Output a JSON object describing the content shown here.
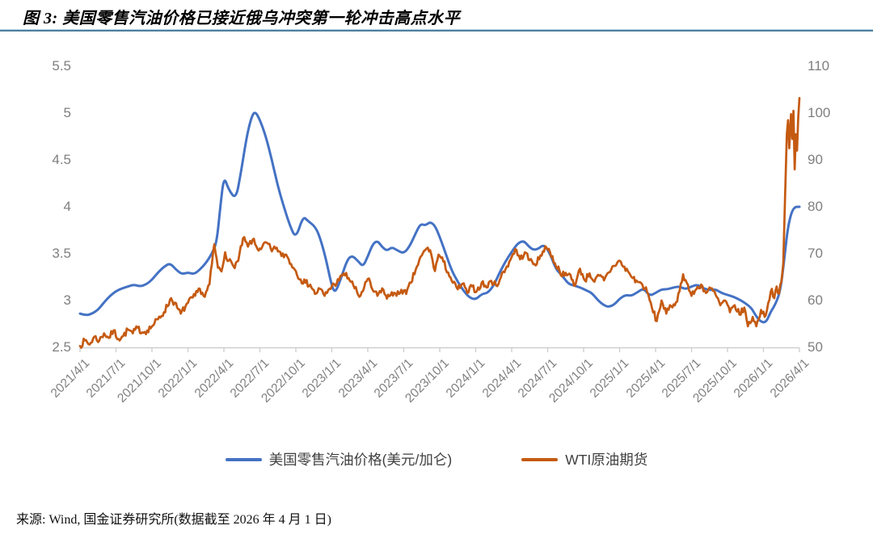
{
  "title": "图 3: 美国零售汽油价格已接近俄乌冲突第一轮冲击高点水平",
  "source_note": "来源: Wind, 国金证券研究所(数据截至 2026 年 4 月 1 日)",
  "colors": {
    "gasoline_line": "#4472C4",
    "wti_line": "#C55A11",
    "axis_text": "#7f7f7f",
    "axis_line": "#c9c9c9",
    "legend_text": "#3f3f3f",
    "divider": "#4e7f9e"
  },
  "legend": [
    {
      "label": "美国零售汽油价格(美元/加仑)",
      "color": "#4472C4"
    },
    {
      "label": "WTI原油期货",
      "color": "#C55A11"
    }
  ],
  "chart_data": {
    "type": "line",
    "title": "美国零售汽油价格 vs WTI原油期货",
    "grid": false,
    "legend_position": "bottom",
    "x_axis": {
      "unit": "months since 2021/4/1",
      "range": [
        0,
        60
      ],
      "tick_interval_months": 3,
      "tick_labels": [
        "2021/4/1",
        "2021/7/1",
        "2021/10/1",
        "2022/1/1",
        "2022/4/1",
        "2022/7/1",
        "2022/10/1",
        "2023/1/1",
        "2023/4/1",
        "2023/7/1",
        "2023/10/1",
        "2024/1/1",
        "2024/4/1",
        "2024/7/1",
        "2024/10/1",
        "2025/1/1",
        "2025/4/1",
        "2025/7/1",
        "2025/10/1",
        "2026/1/1",
        "2026/4/1"
      ]
    },
    "y_left": {
      "min": 2.5,
      "max": 5.5,
      "ticks": [
        "2.5",
        "3",
        "3.5",
        "4",
        "4.5",
        "5",
        "5.5"
      ]
    },
    "y_right": {
      "min": 50,
      "max": 110,
      "ticks": [
        "50",
        "60",
        "70",
        "80",
        "90",
        "100",
        "110"
      ]
    },
    "render": {
      "seed": 7
    },
    "series": [
      {
        "name": "美国零售汽油价格(美元/加仑)",
        "axis": "left",
        "color": "#4472C4",
        "stroke_width": 3,
        "smooth": true,
        "jitter": 0,
        "points": [
          [
            0,
            2.86
          ],
          [
            0.5,
            2.84
          ],
          [
            1,
            2.86
          ],
          [
            1.5,
            2.9
          ],
          [
            2,
            2.98
          ],
          [
            2.5,
            3.05
          ],
          [
            3,
            3.1
          ],
          [
            3.5,
            3.13
          ],
          [
            4,
            3.15
          ],
          [
            4.5,
            3.17
          ],
          [
            5,
            3.15
          ],
          [
            5.5,
            3.17
          ],
          [
            6,
            3.22
          ],
          [
            6.5,
            3.3
          ],
          [
            7,
            3.36
          ],
          [
            7.5,
            3.4
          ],
          [
            8,
            3.33
          ],
          [
            8.5,
            3.28
          ],
          [
            9,
            3.3
          ],
          [
            9.5,
            3.28
          ],
          [
            10,
            3.33
          ],
          [
            10.5,
            3.4
          ],
          [
            11,
            3.5
          ],
          [
            11.4,
            3.62
          ],
          [
            11.7,
            4.0
          ],
          [
            12,
            4.33
          ],
          [
            12.4,
            4.18
          ],
          [
            13,
            4.08
          ],
          [
            13.4,
            4.35
          ],
          [
            13.9,
            4.75
          ],
          [
            14.3,
            4.96
          ],
          [
            14.6,
            5.02
          ],
          [
            15,
            4.93
          ],
          [
            15.5,
            4.75
          ],
          [
            16,
            4.5
          ],
          [
            16.5,
            4.22
          ],
          [
            17,
            4.0
          ],
          [
            17.5,
            3.8
          ],
          [
            18,
            3.66
          ],
          [
            18.6,
            3.9
          ],
          [
            19,
            3.85
          ],
          [
            19.6,
            3.79
          ],
          [
            20,
            3.68
          ],
          [
            20.5,
            3.45
          ],
          [
            21,
            3.15
          ],
          [
            21.3,
            3.08
          ],
          [
            21.8,
            3.25
          ],
          [
            22.3,
            3.44
          ],
          [
            22.7,
            3.48
          ],
          [
            23.2,
            3.42
          ],
          [
            23.6,
            3.36
          ],
          [
            24,
            3.47
          ],
          [
            24.4,
            3.6
          ],
          [
            24.8,
            3.64
          ],
          [
            25.2,
            3.57
          ],
          [
            25.6,
            3.53
          ],
          [
            26,
            3.57
          ],
          [
            26.4,
            3.54
          ],
          [
            27,
            3.5
          ],
          [
            27.5,
            3.58
          ],
          [
            28,
            3.72
          ],
          [
            28.4,
            3.82
          ],
          [
            28.8,
            3.8
          ],
          [
            29.2,
            3.84
          ],
          [
            29.6,
            3.8
          ],
          [
            30,
            3.68
          ],
          [
            30.5,
            3.5
          ],
          [
            31,
            3.32
          ],
          [
            31.5,
            3.2
          ],
          [
            32,
            3.1
          ],
          [
            32.5,
            3.03
          ],
          [
            33,
            3.01
          ],
          [
            33.5,
            3.07
          ],
          [
            34,
            3.08
          ],
          [
            34.5,
            3.16
          ],
          [
            35,
            3.3
          ],
          [
            35.5,
            3.42
          ],
          [
            36,
            3.52
          ],
          [
            36.5,
            3.61
          ],
          [
            37,
            3.64
          ],
          [
            37.4,
            3.58
          ],
          [
            37.8,
            3.54
          ],
          [
            38.2,
            3.55
          ],
          [
            38.7,
            3.6
          ],
          [
            39.2,
            3.5
          ],
          [
            39.7,
            3.33
          ],
          [
            40.2,
            3.27
          ],
          [
            40.7,
            3.18
          ],
          [
            41.2,
            3.16
          ],
          [
            41.7,
            3.14
          ],
          [
            42.2,
            3.11
          ],
          [
            42.7,
            3.08
          ],
          [
            43.2,
            3.0
          ],
          [
            43.7,
            2.95
          ],
          [
            44.1,
            2.93
          ],
          [
            44.6,
            2.96
          ],
          [
            45,
            3.02
          ],
          [
            45.5,
            3.06
          ],
          [
            46,
            3.05
          ],
          [
            46.5,
            3.09
          ],
          [
            47,
            3.13
          ],
          [
            47.5,
            3.05
          ],
          [
            48,
            3.08
          ],
          [
            48.5,
            3.12
          ],
          [
            49,
            3.12
          ],
          [
            49.5,
            3.14
          ],
          [
            50,
            3.15
          ],
          [
            50.5,
            3.12
          ],
          [
            51,
            3.15
          ],
          [
            51.5,
            3.17
          ],
          [
            52,
            3.13
          ],
          [
            52.5,
            3.11
          ],
          [
            53,
            3.12
          ],
          [
            53.5,
            3.08
          ],
          [
            54,
            3.06
          ],
          [
            54.5,
            3.04
          ],
          [
            55,
            3.01
          ],
          [
            55.5,
            2.97
          ],
          [
            56,
            2.92
          ],
          [
            56.3,
            2.85
          ],
          [
            56.7,
            2.78
          ],
          [
            57.2,
            2.76
          ],
          [
            57.6,
            2.88
          ],
          [
            58,
            2.96
          ],
          [
            58.4,
            3.1
          ],
          [
            58.7,
            3.4
          ],
          [
            59,
            3.75
          ],
          [
            59.3,
            3.93
          ],
          [
            59.6,
            4.0
          ],
          [
            60,
            4.0
          ]
        ]
      },
      {
        "name": "WTI原油期货",
        "axis": "right",
        "color": "#C55A11",
        "stroke_width": 2.7,
        "smooth": false,
        "jitter": 0.7,
        "points": [
          [
            0,
            50.3
          ],
          [
            0.4,
            51.5
          ],
          [
            0.8,
            50.6
          ],
          [
            1.2,
            52.3
          ],
          [
            1.6,
            51.4
          ],
          [
            2,
            53.0
          ],
          [
            2.4,
            52.0
          ],
          [
            2.8,
            53.6
          ],
          [
            3.2,
            51.8
          ],
          [
            3.6,
            52.4
          ],
          [
            4,
            53.8
          ],
          [
            4.4,
            53.0
          ],
          [
            4.8,
            54.2
          ],
          [
            5.2,
            53.2
          ],
          [
            5.6,
            53.6
          ],
          [
            6,
            54.5
          ],
          [
            6.5,
            56.0
          ],
          [
            7,
            57.5
          ],
          [
            7.6,
            60.5
          ],
          [
            8.1,
            58.5
          ],
          [
            8.4,
            57.2
          ],
          [
            9,
            59.5
          ],
          [
            9.6,
            61.0
          ],
          [
            10,
            62.5
          ],
          [
            10.4,
            60.8
          ],
          [
            10.8,
            63.5
          ],
          [
            11.2,
            72.0
          ],
          [
            11.5,
            67.0
          ],
          [
            11.8,
            66.2
          ],
          [
            12.1,
            70.3
          ],
          [
            12.4,
            68.5
          ],
          [
            12.8,
            67.3
          ],
          [
            13.2,
            68.5
          ],
          [
            13.6,
            73.3
          ],
          [
            14,
            71.5
          ],
          [
            14.4,
            73.0
          ],
          [
            14.8,
            71.0
          ],
          [
            15.2,
            71.5
          ],
          [
            15.6,
            72.3
          ],
          [
            16,
            70.5
          ],
          [
            16.4,
            71.3
          ],
          [
            16.8,
            69.5
          ],
          [
            17.2,
            69.8
          ],
          [
            17.6,
            67.8
          ],
          [
            18,
            66.3
          ],
          [
            18.4,
            64.5
          ],
          [
            18.8,
            63.8
          ],
          [
            19.2,
            63.4
          ],
          [
            19.6,
            61.4
          ],
          [
            20,
            62.5
          ],
          [
            20.4,
            61.0
          ],
          [
            20.8,
            62.5
          ],
          [
            21.2,
            63.5
          ],
          [
            21.6,
            64.3
          ],
          [
            22,
            65.8
          ],
          [
            22.4,
            64.8
          ],
          [
            22.8,
            63.2
          ],
          [
            23.3,
            60.8
          ],
          [
            23.7,
            62.8
          ],
          [
            24,
            64.6
          ],
          [
            24.4,
            62.3
          ],
          [
            24.8,
            61.0
          ],
          [
            25.2,
            62.6
          ],
          [
            25.6,
            60.4
          ],
          [
            26,
            61.8
          ],
          [
            26.4,
            61.0
          ],
          [
            26.8,
            62.3
          ],
          [
            27.2,
            61.4
          ],
          [
            27.6,
            63.8
          ],
          [
            28,
            66.6
          ],
          [
            28.5,
            69.6
          ],
          [
            29,
            71.3
          ],
          [
            29.3,
            69.8
          ],
          [
            29.6,
            66.3
          ],
          [
            29.9,
            69.8
          ],
          [
            30.3,
            68.3
          ],
          [
            30.7,
            66.0
          ],
          [
            31.1,
            63.8
          ],
          [
            31.5,
            62.4
          ],
          [
            31.9,
            63.6
          ],
          [
            32.3,
            61.6
          ],
          [
            32.7,
            63.0
          ],
          [
            33.1,
            62.0
          ],
          [
            33.5,
            63.8
          ],
          [
            33.9,
            62.8
          ],
          [
            34.3,
            64.2
          ],
          [
            34.7,
            63.2
          ],
          [
            35.1,
            65.0
          ],
          [
            35.5,
            66.8
          ],
          [
            36,
            69.3
          ],
          [
            36.3,
            71.0
          ],
          [
            36.7,
            68.8
          ],
          [
            37.1,
            70.3
          ],
          [
            37.5,
            68.6
          ],
          [
            37.9,
            67.8
          ],
          [
            38.3,
            68.8
          ],
          [
            38.8,
            71.6
          ],
          [
            39.2,
            70.3
          ],
          [
            39.6,
            68.0
          ],
          [
            40,
            66.3
          ],
          [
            40.4,
            65.3
          ],
          [
            40.9,
            65.5
          ],
          [
            41.3,
            63.2
          ],
          [
            41.7,
            66.8
          ],
          [
            42.1,
            64.3
          ],
          [
            42.5,
            65.8
          ],
          [
            42.9,
            64.0
          ],
          [
            43.3,
            65.3
          ],
          [
            43.7,
            64.3
          ],
          [
            44.1,
            66.0
          ],
          [
            44.5,
            67.4
          ],
          [
            45,
            68.5
          ],
          [
            45.3,
            67.2
          ],
          [
            45.7,
            66.2
          ],
          [
            46.1,
            64.8
          ],
          [
            46.5,
            64.0
          ],
          [
            46.9,
            63.4
          ],
          [
            47.3,
            61.8
          ],
          [
            47.7,
            58.4
          ],
          [
            48.1,
            55.6
          ],
          [
            48.5,
            60.0
          ],
          [
            48.9,
            57.2
          ],
          [
            49.3,
            58.8
          ],
          [
            49.7,
            59.6
          ],
          [
            50,
            62.0
          ],
          [
            50.3,
            65.6
          ],
          [
            50.6,
            63.8
          ],
          [
            51,
            61.0
          ],
          [
            51.4,
            62.4
          ],
          [
            51.8,
            63.4
          ],
          [
            52.2,
            61.6
          ],
          [
            52.6,
            62.6
          ],
          [
            53,
            61.3
          ],
          [
            53.4,
            59.0
          ],
          [
            53.8,
            60.0
          ],
          [
            54.2,
            57.5
          ],
          [
            54.6,
            59.0
          ],
          [
            55,
            57.0
          ],
          [
            55.4,
            58.5
          ],
          [
            55.7,
            54.5
          ],
          [
            56.1,
            56.5
          ],
          [
            56.4,
            54.5
          ],
          [
            56.8,
            58.0
          ],
          [
            57.1,
            56.5
          ],
          [
            57.4,
            59.5
          ],
          [
            57.7,
            62.5
          ],
          [
            57.9,
            60.5
          ],
          [
            58.1,
            63.0
          ],
          [
            58.3,
            61.5
          ],
          [
            58.5,
            64.0
          ],
          [
            58.65,
            68.0
          ],
          [
            58.8,
            82.0
          ],
          [
            58.95,
            95.5
          ],
          [
            59.05,
            98.5
          ],
          [
            59.15,
            92.5
          ],
          [
            59.3,
            99.8
          ],
          [
            59.4,
            94.5
          ],
          [
            59.5,
            100.5
          ],
          [
            59.6,
            88.0
          ],
          [
            59.7,
            95.5
          ],
          [
            59.8,
            92.0
          ],
          [
            59.9,
            99.0
          ],
          [
            60,
            103.2
          ]
        ]
      }
    ]
  }
}
